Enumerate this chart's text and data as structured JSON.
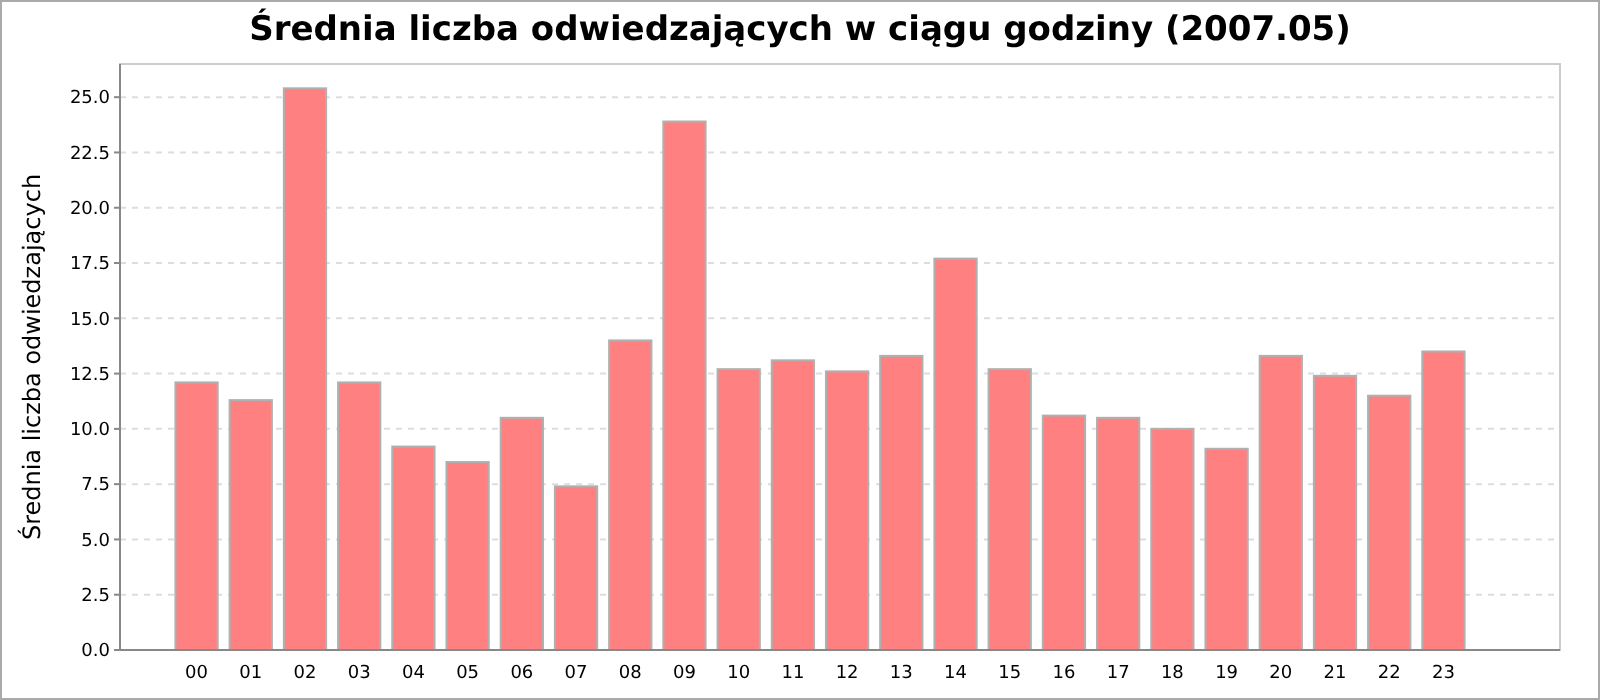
{
  "chart_data": {
    "type": "bar",
    "title": "Średnia liczba odwiedzających w ciągu godziny (2007.05)",
    "ylabel": "Średnia liczba odwiedzających",
    "categories": [
      "00",
      "01",
      "02",
      "03",
      "04",
      "05",
      "06",
      "07",
      "08",
      "09",
      "10",
      "11",
      "12",
      "13",
      "14",
      "15",
      "16",
      "17",
      "18",
      "19",
      "20",
      "21",
      "22",
      "23"
    ],
    "values": [
      12.1,
      11.3,
      25.4,
      12.1,
      9.2,
      8.5,
      10.5,
      7.4,
      14.0,
      23.9,
      12.7,
      13.1,
      12.6,
      13.3,
      17.7,
      12.7,
      10.6,
      10.5,
      10.0,
      9.1,
      13.3,
      12.4,
      11.5,
      13.5
    ],
    "color": "#ff8080",
    "ylim": [
      0,
      26.5
    ],
    "yticks": [
      {
        "value": 0,
        "label": "0.0"
      },
      {
        "value": 2.5,
        "label": "2.5"
      },
      {
        "value": 5,
        "label": "5.0"
      },
      {
        "value": 7.5,
        "label": "7.5"
      },
      {
        "value": 10,
        "label": "10.0"
      },
      {
        "value": 12.5,
        "label": "12.5"
      },
      {
        "value": 15,
        "label": "15.0"
      },
      {
        "value": 17.5,
        "label": "17.5"
      },
      {
        "value": 20,
        "label": "20.0"
      },
      {
        "value": 22.5,
        "label": "22.5"
      },
      {
        "value": 25,
        "label": "25.0"
      }
    ],
    "grid": "y"
  }
}
